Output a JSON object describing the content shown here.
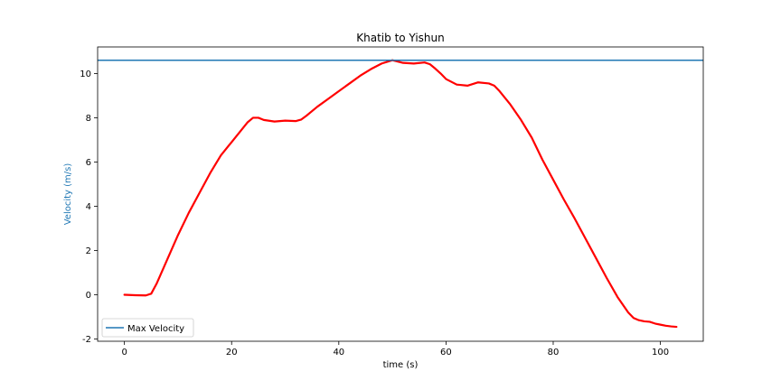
{
  "chart_data": {
    "type": "line",
    "title": "Khatib to Yishun",
    "xlabel": "time (s)",
    "ylabel": "Velocity (m/s)",
    "xlim": [
      -5,
      108
    ],
    "ylim": [
      -2.1,
      11.2
    ],
    "x_ticks": [
      0,
      20,
      40,
      60,
      80,
      100
    ],
    "y_ticks": [
      -2,
      0,
      2,
      4,
      6,
      8,
      10
    ],
    "grid": false,
    "legend_position": "lower-left",
    "colors": {
      "velocity": "#ff0000",
      "max_velocity": "#1f77b4",
      "ylabel": "#1f77b4"
    },
    "series": [
      {
        "x": [
          0,
          2,
          4,
          5,
          6,
          8,
          10,
          12,
          14,
          16,
          18,
          20,
          22,
          23,
          24,
          25,
          26,
          28,
          30,
          32,
          33,
          34,
          36,
          38,
          40,
          42,
          44,
          46,
          48,
          50,
          52,
          54,
          56,
          57,
          58,
          59,
          60,
          62,
          64,
          66,
          68,
          69,
          70,
          72,
          74,
          76,
          78,
          80,
          82,
          84,
          86,
          88,
          90,
          92,
          94,
          95,
          96,
          97,
          98,
          99,
          100,
          101,
          102,
          103
        ],
        "y": [
          0.0,
          -0.02,
          -0.03,
          0.05,
          0.5,
          1.6,
          2.7,
          3.7,
          4.6,
          5.5,
          6.3,
          6.9,
          7.5,
          7.8,
          8.0,
          8.0,
          7.9,
          7.83,
          7.87,
          7.85,
          7.92,
          8.1,
          8.5,
          8.85,
          9.2,
          9.55,
          9.9,
          10.2,
          10.45,
          10.6,
          10.48,
          10.45,
          10.5,
          10.42,
          10.22,
          10.0,
          9.75,
          9.5,
          9.45,
          9.6,
          9.55,
          9.45,
          9.2,
          8.6,
          7.9,
          7.1,
          6.1,
          5.2,
          4.3,
          3.45,
          2.55,
          1.65,
          0.75,
          -0.1,
          -0.8,
          -1.05,
          -1.15,
          -1.2,
          -1.22,
          -1.3,
          -1.35,
          -1.4,
          -1.43,
          -1.45
        ]
      },
      {
        "name": "Max Velocity",
        "value": 10.6
      }
    ]
  }
}
